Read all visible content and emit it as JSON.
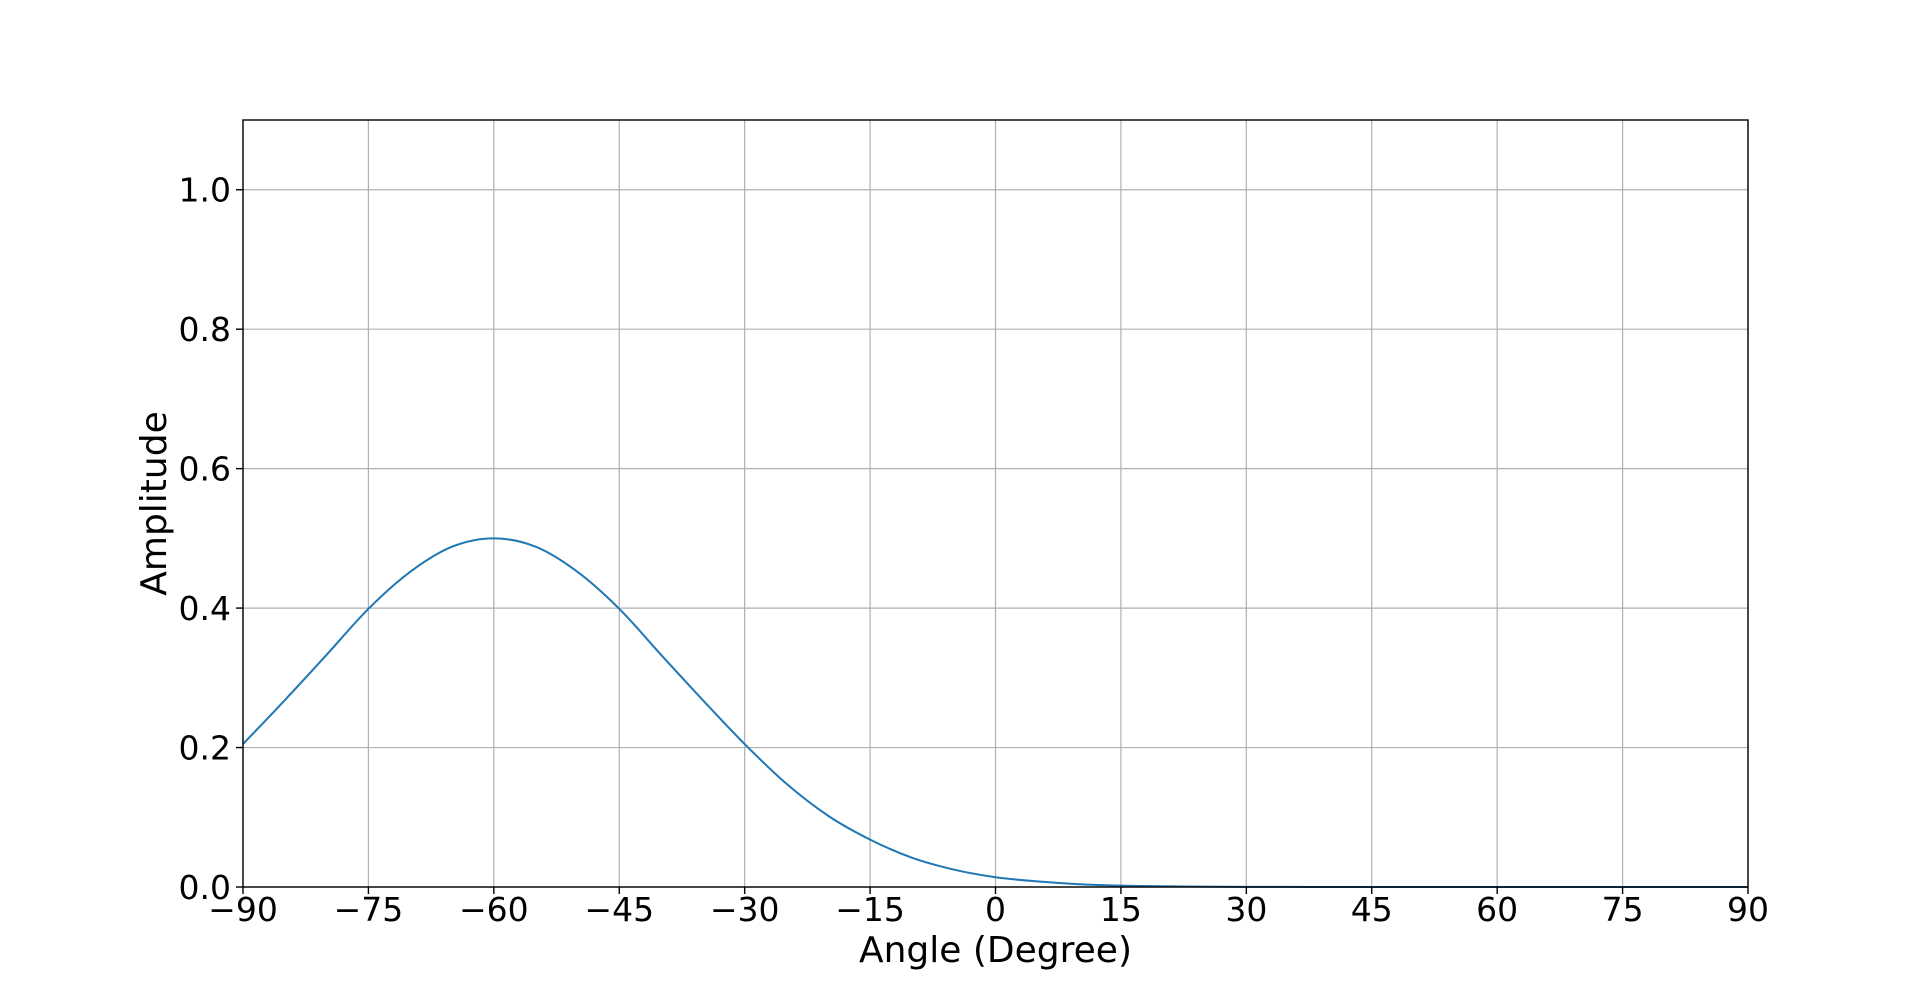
{
  "chart_data": {
    "type": "line",
    "title": "",
    "xlabel": "Angle (Degree)",
    "ylabel": "Amplitude",
    "xlim": [
      -90,
      90
    ],
    "ylim": [
      0,
      1.1
    ],
    "grid": true,
    "x_ticks": [
      {
        "value": -90,
        "label": "−90"
      },
      {
        "value": -75,
        "label": "−75"
      },
      {
        "value": -60,
        "label": "−60"
      },
      {
        "value": -45,
        "label": "−45"
      },
      {
        "value": -30,
        "label": "−30"
      },
      {
        "value": -15,
        "label": "−15"
      },
      {
        "value": 0,
        "label": "0"
      },
      {
        "value": 15,
        "label": "15"
      },
      {
        "value": 30,
        "label": "30"
      },
      {
        "value": 45,
        "label": "45"
      },
      {
        "value": 60,
        "label": "60"
      },
      {
        "value": 75,
        "label": "75"
      },
      {
        "value": 90,
        "label": "90"
      }
    ],
    "y_ticks": [
      {
        "value": 0.0,
        "label": "0.0"
      },
      {
        "value": 0.2,
        "label": "0.2"
      },
      {
        "value": 0.4,
        "label": "0.4"
      },
      {
        "value": 0.6,
        "label": "0.6"
      },
      {
        "value": 0.8,
        "label": "0.8"
      },
      {
        "value": 1.0,
        "label": "1.0"
      }
    ],
    "series": [
      {
        "color": "#1f77b4",
        "x": [
          -90,
          -85,
          -80,
          -75,
          -70,
          -65,
          -60,
          -55,
          -50,
          -45,
          -40,
          -35,
          -30,
          -25,
          -20,
          -15,
          -10,
          -5,
          0,
          5,
          10,
          15,
          20,
          25,
          30,
          35,
          40,
          45,
          50,
          55,
          60,
          65,
          70,
          75,
          80,
          85,
          90
        ],
        "y": [
          0.205,
          0.268,
          0.333,
          0.399,
          0.452,
          0.488,
          0.5,
          0.488,
          0.452,
          0.399,
          0.333,
          0.268,
          0.205,
          0.148,
          0.102,
          0.068,
          0.042,
          0.025,
          0.014,
          0.008,
          0.004,
          0.002,
          0.001,
          0.0005,
          0.0002,
          0.0001,
          0.0,
          0.0,
          0.0,
          0.0,
          0.0,
          0.0,
          0.0,
          0.0,
          0.0,
          0.0,
          0.0
        ]
      }
    ]
  }
}
